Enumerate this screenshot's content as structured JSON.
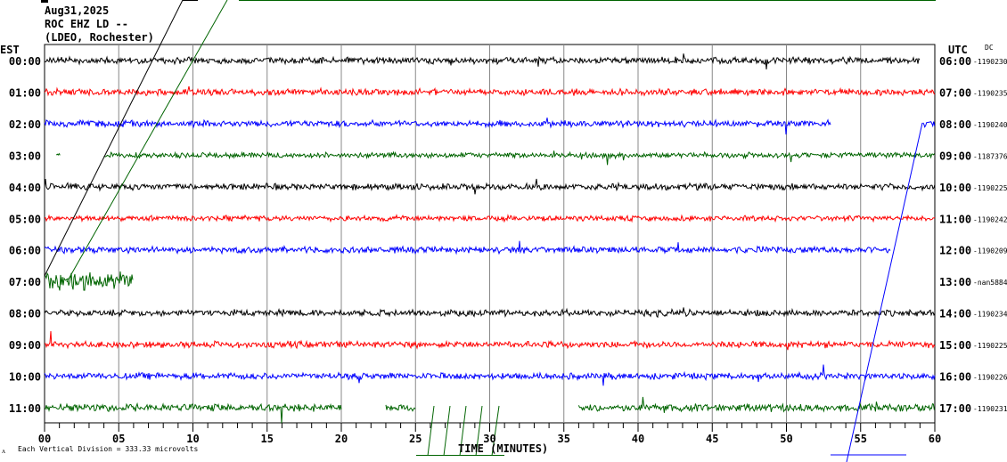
{
  "header": {
    "date": "Aug31,2025",
    "station": "ROC EHZ LD --",
    "network": "(LDEO, Rochester)"
  },
  "chart_data": {
    "type": "line",
    "title": "ROC EHZ LD -- helicorder",
    "xlabel": "TIME (MINUTES)",
    "left_axis_label": "EST",
    "right_axis_label": "UTC",
    "dc_label": "DC",
    "xlim": [
      0,
      60
    ],
    "x_ticks": [
      "00",
      "05",
      "10",
      "15",
      "20",
      "25",
      "30",
      "35",
      "40",
      "45",
      "50",
      "55",
      "60"
    ],
    "scale_note": "Each Vertical Division =  333.33 microvolts",
    "rows": [
      {
        "est": "00:00",
        "utc": "06:00",
        "dc": "-1190230",
        "color": "#000000",
        "segments": [
          [
            0,
            59
          ]
        ],
        "amplitude": 3
      },
      {
        "est": "01:00",
        "utc": "07:00",
        "dc": "-1190235",
        "color": "#ff0000",
        "segments": [
          [
            0,
            60
          ]
        ],
        "amplitude": 3
      },
      {
        "est": "02:00",
        "utc": "08:00",
        "dc": "-1190240",
        "color": "#0000ff",
        "segments": [
          [
            0,
            53
          ],
          [
            59.2,
            60
          ]
        ],
        "amplitude": 3
      },
      {
        "est": "03:00",
        "utc": "09:00",
        "dc": "-1187376",
        "color": "#006400",
        "segments": [
          [
            0.8,
            1.1
          ],
          [
            4,
            60
          ]
        ],
        "amplitude": 2.5
      },
      {
        "est": "04:00",
        "utc": "10:00",
        "dc": "-1190225",
        "color": "#000000",
        "segments": [
          [
            0,
            60
          ]
        ],
        "amplitude": 3
      },
      {
        "est": "05:00",
        "utc": "11:00",
        "dc": "-1190242",
        "color": "#ff0000",
        "segments": [
          [
            0,
            60
          ]
        ],
        "amplitude": 2.5
      },
      {
        "est": "06:00",
        "utc": "12:00",
        "dc": "-1190209",
        "color": "#0000ff",
        "segments": [
          [
            0,
            57
          ]
        ],
        "amplitude": 3
      },
      {
        "est": "07:00",
        "utc": "13:00",
        "dc": "-nan5884",
        "color": "#006400",
        "segments": [
          [
            0,
            6
          ]
        ],
        "amplitude": 9
      },
      {
        "est": "08:00",
        "utc": "14:00",
        "dc": "-1190234",
        "color": "#000000",
        "segments": [
          [
            0,
            60
          ]
        ],
        "amplitude": 3
      },
      {
        "est": "09:00",
        "utc": "15:00",
        "dc": "-1190225",
        "color": "#ff0000",
        "segments": [
          [
            0,
            60
          ]
        ],
        "amplitude": 3
      },
      {
        "est": "10:00",
        "utc": "16:00",
        "dc": "-1190226",
        "color": "#0000ff",
        "segments": [
          [
            0,
            60
          ]
        ],
        "amplitude": 3
      },
      {
        "est": "11:00",
        "utc": "17:00",
        "dc": "-1190231",
        "color": "#006400",
        "segments": [
          [
            0,
            20
          ],
          [
            23,
            25
          ],
          [
            36,
            60
          ]
        ],
        "amplitude": 3.5
      }
    ]
  }
}
